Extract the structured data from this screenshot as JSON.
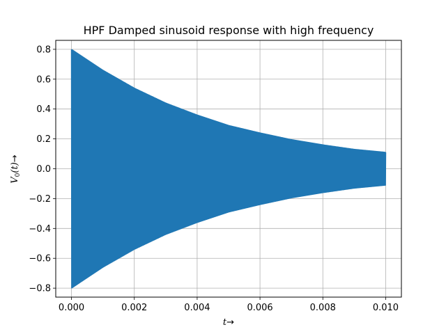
{
  "chart_data": {
    "type": "line",
    "title": "HPF Damped sinusoid response with high frequency",
    "xlabel": "t→",
    "ylabel": "V₀(t)→",
    "xlim": [
      -0.0005,
      0.0105
    ],
    "ylim": [
      -0.86,
      0.86
    ],
    "grid": true,
    "x_ticks": [
      0.0,
      0.002,
      0.004,
      0.006,
      0.008,
      0.01
    ],
    "x_tick_labels": [
      "0.000",
      "0.002",
      "0.004",
      "0.006",
      "0.008",
      "0.010"
    ],
    "y_ticks": [
      -0.8,
      -0.6,
      -0.4,
      -0.2,
      0.0,
      0.2,
      0.4,
      0.6,
      0.8
    ],
    "y_tick_labels": [
      "−0.8",
      "−0.6",
      "−0.4",
      "−0.2",
      "0.0",
      "0.2",
      "0.4",
      "0.6",
      "0.8"
    ],
    "series": [
      {
        "color": "#1f77b4",
        "description": "high-frequency sinusoid inside a decaying exponential envelope",
        "envelope_t": [
          0.0,
          0.001,
          0.002,
          0.003,
          0.004,
          0.005,
          0.006,
          0.007,
          0.008,
          0.009,
          0.01
        ],
        "envelope_upper": [
          0.8,
          0.66,
          0.54,
          0.44,
          0.36,
          0.29,
          0.24,
          0.195,
          0.16,
          0.13,
          0.11
        ],
        "envelope_lower": [
          -0.8,
          -0.66,
          -0.54,
          -0.44,
          -0.36,
          -0.29,
          -0.24,
          -0.195,
          -0.16,
          -0.13,
          -0.11
        ]
      }
    ]
  }
}
